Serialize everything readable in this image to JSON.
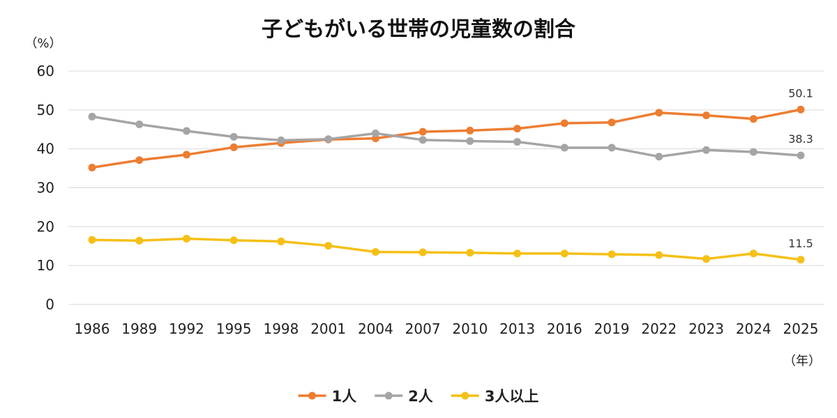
{
  "chart_data": {
    "type": "line",
    "title": "子どもがいる世帯の児童数の割合",
    "ylabel": "（%）",
    "xlabel": "（年）",
    "ylim": [
      0,
      60
    ],
    "yticks": [
      0,
      10,
      20,
      30,
      40,
      50,
      60
    ],
    "grid": true,
    "legend_position": "bottom",
    "categories": [
      "1986",
      "1989",
      "1992",
      "1995",
      "1998",
      "2001",
      "2004",
      "2007",
      "2010",
      "2013",
      "2016",
      "2019",
      "2022",
      "2023",
      "2024",
      "2025"
    ],
    "series": [
      {
        "name": "1人",
        "color": "#ED7D31",
        "values": [
          35.2,
          37.1,
          38.5,
          40.4,
          41.5,
          42.4,
          42.7,
          44.4,
          44.7,
          45.2,
          46.6,
          46.8,
          49.3,
          48.6,
          47.7,
          50.1
        ],
        "last_label": "50.1"
      },
      {
        "name": "2人",
        "color": "#A5A5A5",
        "values": [
          48.3,
          46.3,
          44.6,
          43.1,
          42.2,
          42.5,
          44.0,
          42.3,
          42.0,
          41.8,
          40.3,
          40.3,
          38.0,
          39.7,
          39.2,
          38.3
        ],
        "last_label": "38.3"
      },
      {
        "name": "3人以上",
        "color": "#F5C016",
        "values": [
          16.6,
          16.4,
          16.9,
          16.5,
          16.2,
          15.1,
          13.5,
          13.4,
          13.3,
          13.1,
          13.1,
          12.9,
          12.7,
          11.7,
          13.1,
          11.5
        ],
        "last_label": "11.5"
      }
    ]
  }
}
